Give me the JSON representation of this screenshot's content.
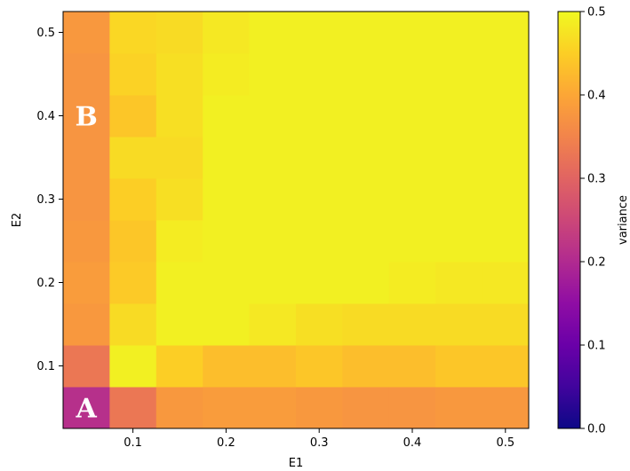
{
  "chart_data": {
    "type": "heatmap",
    "xlabel": "E1",
    "ylabel": "E2",
    "x_ticks": [
      "0.1",
      "0.2",
      "0.3",
      "0.4",
      "0.5"
    ],
    "y_ticks": [
      "0.1",
      "0.2",
      "0.3",
      "0.4",
      "0.5"
    ],
    "x_values": [
      0.05,
      0.1,
      0.15,
      0.2,
      0.25,
      0.3,
      0.35,
      0.4,
      0.45,
      0.5
    ],
    "y_values": [
      0.05,
      0.1,
      0.15,
      0.2,
      0.25,
      0.3,
      0.35,
      0.4,
      0.45,
      0.5
    ],
    "xlim": [
      0.025,
      0.525
    ],
    "ylim": [
      0.025,
      0.525
    ],
    "colorbar": {
      "label": "variance",
      "range": [
        0.0,
        0.5
      ],
      "ticks": [
        "0.0",
        "0.1",
        "0.2",
        "0.3",
        "0.4",
        "0.5"
      ],
      "colormap": "plasma"
    },
    "values": [
      [
        0.21,
        0.33,
        0.38,
        0.385,
        0.385,
        0.38,
        0.375,
        0.375,
        0.38,
        0.38
      ],
      [
        0.33,
        0.49,
        0.45,
        0.43,
        0.43,
        0.44,
        0.43,
        0.43,
        0.44,
        0.44
      ],
      [
        0.38,
        0.465,
        0.49,
        0.49,
        0.48,
        0.47,
        0.465,
        0.465,
        0.465,
        0.465
      ],
      [
        0.385,
        0.445,
        0.49,
        0.49,
        0.49,
        0.49,
        0.49,
        0.485,
        0.48,
        0.48
      ],
      [
        0.38,
        0.44,
        0.485,
        0.49,
        0.49,
        0.49,
        0.49,
        0.49,
        0.49,
        0.49
      ],
      [
        0.375,
        0.45,
        0.47,
        0.49,
        0.49,
        0.49,
        0.49,
        0.49,
        0.49,
        0.49
      ],
      [
        0.375,
        0.465,
        0.465,
        0.49,
        0.49,
        0.49,
        0.49,
        0.49,
        0.49,
        0.49
      ],
      [
        0.375,
        0.44,
        0.47,
        0.49,
        0.49,
        0.49,
        0.49,
        0.49,
        0.49,
        0.49
      ],
      [
        0.375,
        0.455,
        0.47,
        0.485,
        0.49,
        0.49,
        0.49,
        0.49,
        0.49,
        0.49
      ],
      [
        0.38,
        0.46,
        0.465,
        0.48,
        0.49,
        0.49,
        0.49,
        0.49,
        0.49,
        0.49
      ]
    ],
    "annotations": [
      {
        "text": "A",
        "x": 0.05,
        "y": 0.05
      },
      {
        "text": "B",
        "x": 0.05,
        "y": 0.4
      }
    ]
  }
}
